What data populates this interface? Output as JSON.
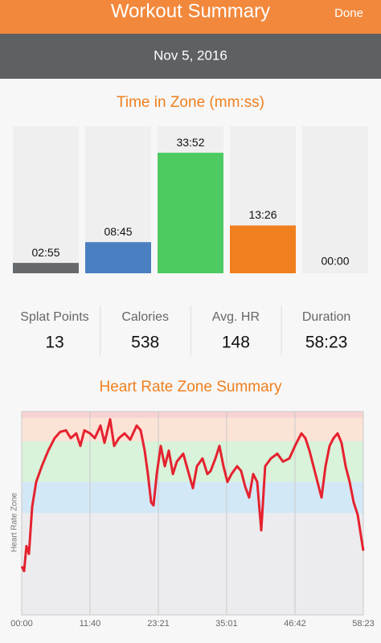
{
  "header": {
    "title": "Workout Summary",
    "action": "Done",
    "date": "Nov 5, 2016"
  },
  "stats": [
    {
      "label": "Splat Points",
      "value": 13
    },
    {
      "label": "Calories",
      "value": 538
    },
    {
      "label": "Avg. HR",
      "value": 148
    },
    {
      "label": "Duration",
      "value": "58:23"
    }
  ],
  "chart_data": [
    {
      "type": "bar",
      "title": "Time in Zone (mm:ss)",
      "categories": [
        null,
        null,
        null,
        null,
        null
      ],
      "values": [
        175,
        525,
        2032,
        806,
        0
      ],
      "value_labels": [
        "02:55",
        "08:45",
        "33:52",
        "13:26",
        "00:00"
      ],
      "colors": [
        "#666a6c",
        "#4a7fc1",
        "#4dcb62",
        "#f07f1e",
        "#8a8a8a"
      ],
      "ylim": [
        0,
        2480
      ]
    },
    {
      "type": "line",
      "title": "Heart Rate Zone Summary",
      "ylabel": "Heart Rate Zone",
      "x": [
        0,
        25,
        49,
        74,
        107,
        148,
        206,
        272,
        338,
        396,
        453,
        503,
        560,
        602,
        643,
        701,
        750,
        808,
        849,
        907,
        948,
        997,
        1055,
        1113,
        1179,
        1220,
        1261,
        1294,
        1327,
        1352,
        1385,
        1426,
        1467,
        1508,
        1550,
        1591,
        1657,
        1714,
        1756,
        1797,
        1854,
        1904,
        1937,
        1986,
        2028,
        2069,
        2110,
        2151,
        2209,
        2250,
        2291,
        2332,
        2374,
        2415,
        2456,
        2497,
        2555,
        2621,
        2679,
        2745,
        2810,
        2868,
        2909,
        2951,
        2992,
        3033,
        3074,
        3116,
        3157,
        3198,
        3239,
        3280,
        3322,
        3363,
        3404,
        3445,
        3470,
        3503
      ],
      "series": [
        {
          "color": "#e5222f",
          "values": [
            91,
            88,
            104,
            99,
            129,
            145,
            155,
            165,
            173,
            177,
            178,
            173,
            176,
            168,
            178,
            176,
            173,
            181,
            170,
            185,
            168,
            173,
            176,
            172,
            181,
            178,
            165,
            150,
            132,
            130,
            150,
            168,
            155,
            165,
            150,
            158,
            163,
            150,
            141,
            155,
            160,
            150,
            152,
            160,
            168,
            155,
            145,
            150,
            155,
            152,
            142,
            135,
            150,
            145,
            114,
            155,
            160,
            163,
            158,
            160,
            169,
            176,
            173,
            165,
            155,
            145,
            135,
            155,
            168,
            173,
            176,
            170,
            155,
            145,
            132,
            124,
            114,
            101
          ]
        }
      ],
      "zones": [
        {
          "from": 60,
          "to": 125,
          "color": "#ececee"
        },
        {
          "from": 125,
          "to": 145,
          "color": "#d3e8f6"
        },
        {
          "from": 145,
          "to": 171,
          "color": "#d9f2da"
        },
        {
          "from": 171,
          "to": 186,
          "color": "#fbe3d6"
        },
        {
          "from": 186,
          "to": 190,
          "color": "#f7d2d2"
        }
      ],
      "xlim": [
        0,
        3503
      ],
      "ylim": [
        60,
        190
      ],
      "xticks": [
        {
          "value": 0,
          "label": "00:00"
        },
        {
          "value": 700,
          "label": "11:40"
        },
        {
          "value": 1401,
          "label": "23:21"
        },
        {
          "value": 2101,
          "label": "35:01"
        },
        {
          "value": 2802,
          "label": "46:42"
        },
        {
          "value": 3503,
          "label": "58:23"
        }
      ],
      "grid": true
    }
  ]
}
